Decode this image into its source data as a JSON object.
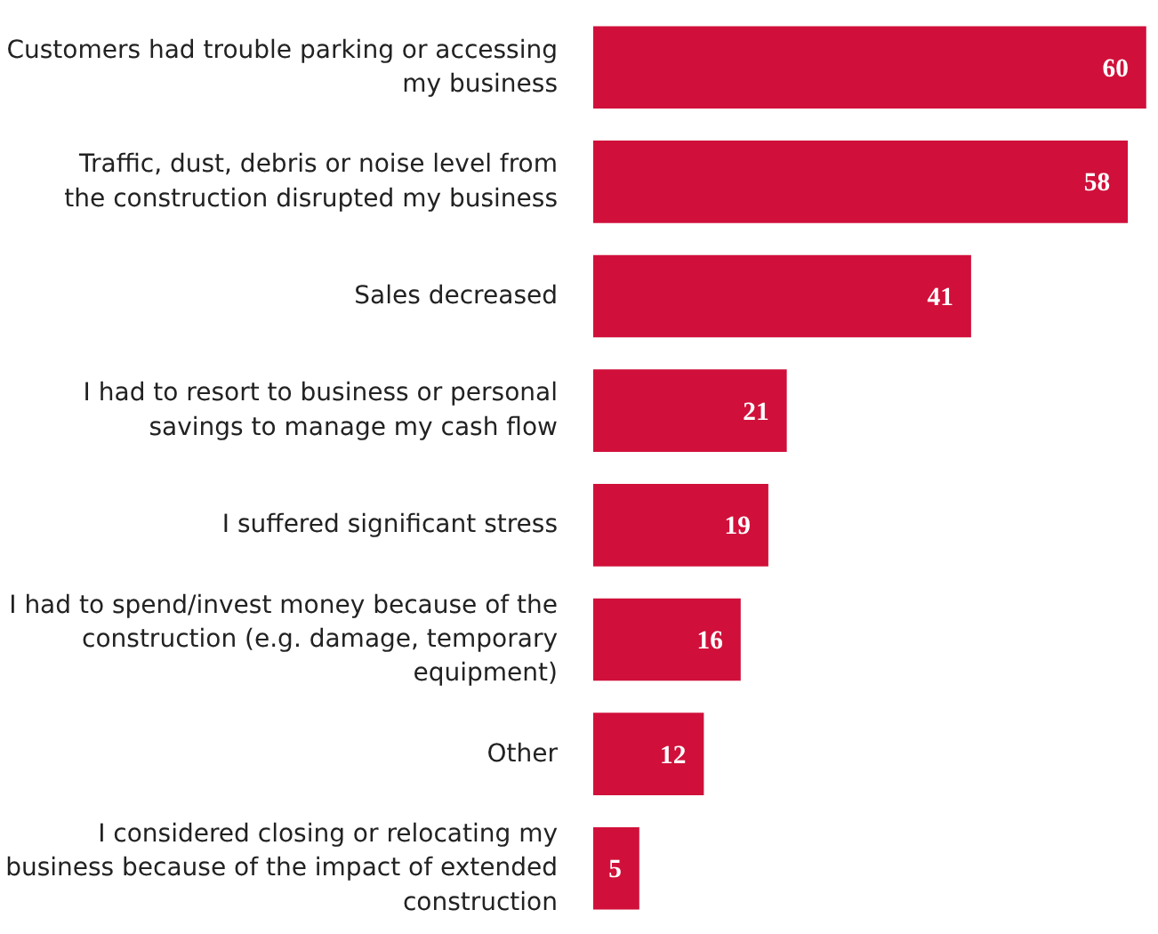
{
  "chart_data": {
    "type": "bar",
    "orientation": "horizontal",
    "data_labels": true,
    "grid": false,
    "tick_labels": "y",
    "categories": [
      "Customers had trouble parking or accessing my business",
      "Traffic, dust, debris or noise level from the construction disrupted my business",
      "Sales decreased",
      "I had to resort to business or personal savings to manage my cash flow",
      "I suffered significant stress",
      "I had to spend/invest money because of the construction (e.g. damage, temporary equipment)",
      "Other",
      "I considered closing or relocating my business because of the impact of extended construction"
    ],
    "values": [
      60,
      58,
      41,
      21,
      19,
      16,
      12,
      5
    ],
    "color": "#d0103a"
  }
}
